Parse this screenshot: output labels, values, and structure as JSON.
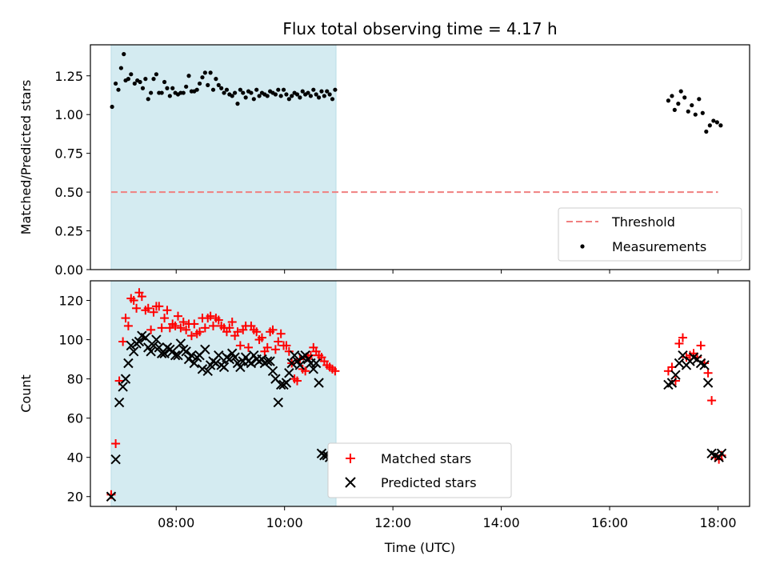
{
  "figure": {
    "title": "Flux total observing time = 4.17 h"
  },
  "chart_data": [
    {
      "type": "scatter",
      "panel": "top",
      "ylabel": "Matched/Predicted stars",
      "xlabel": "",
      "xlim": [
        "06:25",
        "18:35"
      ],
      "ylim": [
        0,
        1.45
      ],
      "yticks": [
        "0.00",
        "0.25",
        "0.50",
        "0.75",
        "1.00",
        "1.25"
      ],
      "xticks": [
        "08:00",
        "10:00",
        "12:00",
        "14:00",
        "16:00",
        "18:00"
      ],
      "shaded_region": {
        "start": "06:48",
        "end": "10:57",
        "color": "#d4ebf1"
      },
      "legend": {
        "placement": "lower right",
        "threshold_label": "Threshold",
        "measurements_label": "Measurements"
      },
      "series": [
        {
          "name": "Threshold",
          "kind": "dashed-line",
          "color": "#f08080",
          "x": [
            "06:48",
            "18:00"
          ],
          "y": [
            0.5,
            0.5
          ]
        },
        {
          "name": "Measurements",
          "kind": "dots",
          "color": "#000000",
          "x": [
            "06:49",
            "06:53",
            "06:56",
            "06:59",
            "07:02",
            "07:04",
            "07:07",
            "07:10",
            "07:14",
            "07:17",
            "07:20",
            "07:23",
            "07:26",
            "07:29",
            "07:32",
            "07:35",
            "07:38",
            "07:41",
            "07:44",
            "07:47",
            "07:50",
            "07:53",
            "07:56",
            "07:59",
            "08:02",
            "08:05",
            "08:08",
            "08:11",
            "08:14",
            "08:17",
            "08:20",
            "08:23",
            "08:26",
            "08:29",
            "08:32",
            "08:35",
            "08:38",
            "08:41",
            "08:44",
            "08:47",
            "08:50",
            "08:53",
            "08:56",
            "08:59",
            "09:02",
            "09:05",
            "09:08",
            "09:11",
            "09:14",
            "09:17",
            "09:20",
            "09:23",
            "09:26",
            "09:29",
            "09:32",
            "09:35",
            "09:38",
            "09:41",
            "09:44",
            "09:47",
            "09:50",
            "09:53",
            "09:56",
            "09:59",
            "10:02",
            "10:05",
            "10:08",
            "10:11",
            "10:14",
            "10:17",
            "10:20",
            "10:23",
            "10:26",
            "10:29",
            "10:32",
            "10:35",
            "10:38",
            "10:41",
            "10:44",
            "10:47",
            "10:50",
            "10:53",
            "10:56",
            "17:05",
            "17:09",
            "17:12",
            "17:16",
            "17:19",
            "17:23",
            "17:27",
            "17:31",
            "17:35",
            "17:39",
            "17:43",
            "17:47",
            "17:51",
            "17:55",
            "17:59",
            "18:03"
          ],
          "y": [
            1.05,
            1.2,
            1.16,
            1.3,
            1.39,
            1.22,
            1.23,
            1.26,
            1.2,
            1.22,
            1.21,
            1.17,
            1.23,
            1.1,
            1.14,
            1.23,
            1.26,
            1.14,
            1.14,
            1.21,
            1.17,
            1.12,
            1.17,
            1.14,
            1.13,
            1.14,
            1.14,
            1.18,
            1.25,
            1.15,
            1.15,
            1.16,
            1.2,
            1.24,
            1.27,
            1.19,
            1.27,
            1.16,
            1.23,
            1.19,
            1.17,
            1.14,
            1.16,
            1.13,
            1.12,
            1.14,
            1.07,
            1.16,
            1.14,
            1.11,
            1.15,
            1.14,
            1.1,
            1.16,
            1.12,
            1.14,
            1.13,
            1.12,
            1.15,
            1.14,
            1.13,
            1.16,
            1.12,
            1.16,
            1.13,
            1.1,
            1.12,
            1.14,
            1.13,
            1.11,
            1.15,
            1.13,
            1.14,
            1.12,
            1.16,
            1.13,
            1.11,
            1.15,
            1.12,
            1.15,
            1.13,
            1.1,
            1.16,
            1.09,
            1.12,
            1.03,
            1.07,
            1.15,
            1.11,
            1.02,
            1.06,
            1.0,
            1.1,
            1.01,
            0.89,
            0.93,
            0.96,
            0.95,
            0.93
          ]
        }
      ]
    },
    {
      "type": "scatter",
      "panel": "bottom",
      "ylabel": "Count",
      "xlabel": "Time (UTC)",
      "xlim": [
        "06:25",
        "18:35"
      ],
      "ylim": [
        15,
        130
      ],
      "yticks": [
        "20",
        "40",
        "60",
        "80",
        "100",
        "120"
      ],
      "xticks": [
        "08:00",
        "10:00",
        "12:00",
        "14:00",
        "16:00",
        "18:00"
      ],
      "shaded_region": {
        "start": "06:48",
        "end": "10:57",
        "color": "#d4ebf1"
      },
      "legend": {
        "placement": "lower center",
        "matched_label": "Matched stars",
        "predicted_label": "Predicted stars"
      },
      "series": [
        {
          "name": "Matched stars",
          "marker": "plus",
          "color": "#ff0000",
          "x": [
            "06:48",
            "06:53",
            "06:57",
            "07:01",
            "07:04",
            "07:07",
            "07:10",
            "07:13",
            "07:16",
            "07:19",
            "07:22",
            "07:26",
            "07:29",
            "07:32",
            "07:35",
            "07:38",
            "07:41",
            "07:44",
            "07:47",
            "07:50",
            "07:53",
            "07:56",
            "07:59",
            "08:02",
            "08:05",
            "08:08",
            "08:11",
            "08:14",
            "08:17",
            "08:20",
            "08:23",
            "08:26",
            "08:29",
            "08:32",
            "08:35",
            "08:38",
            "08:41",
            "08:44",
            "08:47",
            "08:50",
            "08:53",
            "08:56",
            "08:59",
            "09:02",
            "09:05",
            "09:08",
            "09:11",
            "09:14",
            "09:17",
            "09:20",
            "09:23",
            "09:26",
            "09:29",
            "09:32",
            "09:35",
            "09:38",
            "09:41",
            "09:44",
            "09:47",
            "09:50",
            "09:53",
            "09:56",
            "09:59",
            "10:02",
            "10:05",
            "10:08",
            "10:11",
            "10:14",
            "10:17",
            "10:20",
            "10:23",
            "10:26",
            "10:29",
            "10:32",
            "10:35",
            "10:38",
            "10:41",
            "10:44",
            "10:47",
            "10:50",
            "10:53",
            "10:56",
            "17:05",
            "17:09",
            "17:13",
            "17:17",
            "17:21",
            "17:25",
            "17:29",
            "17:33",
            "17:37",
            "17:41",
            "17:45",
            "17:49",
            "17:53",
            "17:57",
            "18:01",
            "18:04"
          ],
          "y": [
            21,
            47,
            79,
            99,
            111,
            107,
            121,
            120,
            116,
            124,
            122,
            115,
            116,
            105,
            114,
            117,
            117,
            106,
            111,
            115,
            106,
            108,
            107,
            112,
            106,
            109,
            105,
            108,
            102,
            108,
            103,
            104,
            111,
            106,
            111,
            112,
            107,
            111,
            110,
            107,
            106,
            104,
            106,
            109,
            102,
            104,
            97,
            105,
            107,
            96,
            107,
            105,
            104,
            100,
            101,
            94,
            96,
            104,
            105,
            95,
            99,
            103,
            97,
            97,
            94,
            88,
            80,
            79,
            90,
            85,
            84,
            91,
            92,
            96,
            94,
            92,
            91,
            89,
            87,
            86,
            85,
            84,
            84,
            86,
            79,
            98,
            101,
            91,
            92,
            93,
            91,
            97,
            88,
            83,
            69,
            40,
            39,
            41
          ]
        },
        {
          "name": "Predicted stars",
          "marker": "x",
          "color": "#000000",
          "x": [
            "06:48",
            "06:53",
            "06:57",
            "07:01",
            "07:04",
            "07:07",
            "07:10",
            "07:13",
            "07:16",
            "07:19",
            "07:22",
            "07:26",
            "07:29",
            "07:32",
            "07:35",
            "07:38",
            "07:41",
            "07:44",
            "07:47",
            "07:50",
            "07:53",
            "07:56",
            "07:59",
            "08:02",
            "08:05",
            "08:08",
            "08:11",
            "08:14",
            "08:17",
            "08:20",
            "08:23",
            "08:26",
            "08:29",
            "08:32",
            "08:35",
            "08:38",
            "08:41",
            "08:44",
            "08:47",
            "08:50",
            "08:53",
            "08:56",
            "08:59",
            "09:02",
            "09:05",
            "09:08",
            "09:11",
            "09:14",
            "09:17",
            "09:20",
            "09:23",
            "09:26",
            "09:29",
            "09:32",
            "09:35",
            "09:38",
            "09:41",
            "09:44",
            "09:47",
            "09:50",
            "09:53",
            "09:56",
            "09:59",
            "10:02",
            "10:05",
            "10:08",
            "10:11",
            "10:14",
            "10:17",
            "10:20",
            "10:23",
            "10:26",
            "10:29",
            "10:32",
            "10:35",
            "10:38",
            "10:41",
            "10:44",
            "10:47",
            "10:50",
            "10:53",
            "10:56",
            "17:05",
            "17:09",
            "17:13",
            "17:17",
            "17:21",
            "17:25",
            "17:29",
            "17:33",
            "17:37",
            "17:41",
            "17:45",
            "17:49",
            "17:53",
            "17:57",
            "18:01",
            "18:04"
          ],
          "y": [
            20,
            39,
            68,
            76,
            80,
            88,
            97,
            94,
            98,
            99,
            102,
            101,
            96,
            94,
            97,
            100,
            96,
            93,
            93,
            96,
            95,
            94,
            92,
            92,
            98,
            95,
            94,
            90,
            92,
            88,
            91,
            92,
            85,
            95,
            84,
            87,
            89,
            88,
            92,
            87,
            86,
            91,
            90,
            93,
            91,
            88,
            86,
            89,
            91,
            89,
            88,
            92,
            90,
            89,
            90,
            88,
            89,
            89,
            84,
            80,
            68,
            77,
            77,
            78,
            83,
            88,
            92,
            89,
            87,
            91,
            92,
            90,
            88,
            85,
            88,
            78,
            42,
            41,
            41,
            40,
            40,
            40,
            77,
            78,
            82,
            88,
            92,
            87,
            89,
            91,
            90,
            88,
            87,
            78,
            42,
            41,
            40,
            42
          ]
        }
      ]
    }
  ]
}
